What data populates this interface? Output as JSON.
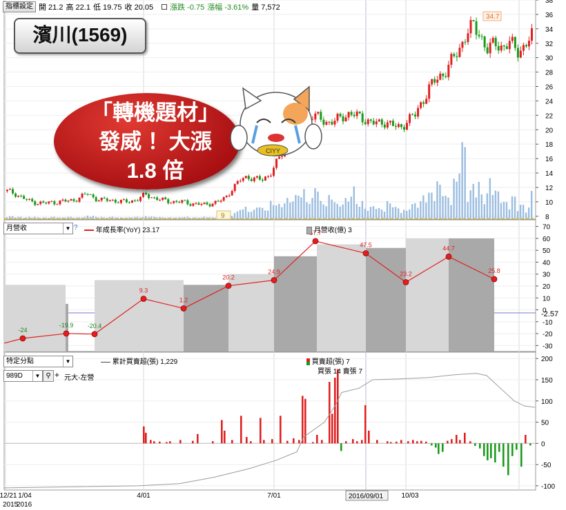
{
  "toolbar": {
    "button": "指標設定",
    "open": "開 21.2",
    "high": "高 22.1",
    "low": "低 19.75",
    "close": "收 20.05",
    "change": "漲跌 -0.75",
    "pct": "漲幅 -3.61%",
    "volume": "量 7,572"
  },
  "stock_title": "濱川(1569)",
  "callout": {
    "line1": "「轉機題材」",
    "line2": "發威 ！大漲",
    "line3": "1.8 倍"
  },
  "panel2": {
    "select": "月營收",
    "help": "?",
    "legend_line": "年成長率(YoY) 23.17",
    "legend_bar": "月營收(億) 3"
  },
  "panel3": {
    "select": "特定分點",
    "broker_code": "989D",
    "broker_name": "元大-左營",
    "legend_line": "累計買賣超(張) 1,229",
    "legend_bar": "買賣超(張) 7",
    "legend_sub": "買張 14 賣張 7"
  },
  "x_axis": {
    "labels": [
      "12/21",
      "1/04",
      "4/01",
      "7/01",
      "2016/09/01",
      "10/03"
    ],
    "year_labels": [
      "2015",
      "2016"
    ]
  },
  "colors": {
    "up": "#e02020",
    "down": "#1a9a1a",
    "volume": "#9bbde0",
    "revenue": "#a9a9a9",
    "yoy": "#e02020"
  },
  "chart_data": [
    {
      "type": "candlestick",
      "title": "濱川(1569)",
      "y_ticks": [
        8,
        10,
        12,
        14,
        16,
        18,
        20,
        22,
        24,
        26,
        28,
        30,
        32,
        34,
        36,
        38
      ],
      "ylim": [
        7.5,
        38
      ],
      "annotations": {
        "high": "34.7",
        "low": "9"
      },
      "price_path": [
        11.5,
        11.2,
        10.6,
        10.1,
        9.9,
        9.8,
        9.9,
        10.0,
        10.1,
        10.2,
        10.6,
        11.2,
        10.5,
        10.2,
        10.3,
        10.1,
        10.0,
        10.1,
        10.4,
        11.0,
        10.6,
        10.3,
        10.1,
        10.0,
        10.0,
        9.8,
        9.7,
        9.6,
        9.8,
        10.0,
        10.6,
        12.0,
        13.0,
        13.5,
        13.2,
        13.0,
        13.8,
        15.5,
        17.0,
        18.5,
        20.0,
        21.2,
        22.0,
        21.5,
        21.0,
        21.2,
        21.8,
        22.3,
        21.9,
        21.5,
        21.0,
        20.8,
        21.2,
        20.5,
        20.2,
        21.5,
        22.0,
        24.0,
        26.0,
        27.0,
        28.0,
        29.5,
        31.0,
        33.5,
        34.3,
        33.0,
        31.0,
        32.0,
        31.5,
        32.0,
        31.0,
        31.5,
        33.0
      ]
    },
    {
      "type": "bar",
      "name": "volume",
      "values": [
        0.4,
        0.3,
        0.2,
        0.3,
        0.2,
        0.2,
        0.3,
        0.2,
        0.3,
        0.2,
        0.3,
        0.5,
        0.3,
        0.2,
        0.3,
        0.2,
        0.2,
        0.3,
        0.3,
        0.4,
        0.3,
        0.2,
        0.2,
        0.2,
        0.3,
        0.2,
        0.2,
        0.3,
        0.2,
        0.3,
        0.6,
        1.2,
        2.0,
        1.5,
        2.5,
        1.8,
        3.0,
        2.5,
        3.5,
        4.0,
        5.0,
        3.5,
        6.5,
        3.0,
        4.0,
        2.5,
        3.5,
        5.5,
        3.0,
        2.0,
        2.5,
        1.8,
        3.0,
        2.0,
        1.5,
        2.5,
        3.0,
        4.5,
        5.0,
        6.5,
        4.0,
        7.0,
        13.5,
        5.0,
        6.5,
        4.5,
        7.5,
        5.0,
        3.0,
        4.0,
        2.5,
        2.0,
        5.0
      ]
    },
    {
      "type": "bar+line",
      "y_ticks": [
        -30,
        -20,
        -10,
        0,
        10,
        20,
        30,
        40,
        50,
        60,
        70
      ],
      "ylim": [
        -35,
        75
      ],
      "current_marker": "-2.57",
      "revenue_bars": [
        {
          "x0": 6,
          "x1": 95,
          "v": 21
        },
        {
          "x0": 95,
          "x1": 99,
          "v": 5
        },
        {
          "x0": 137,
          "x1": 266,
          "v": 25
        },
        {
          "x0": 266,
          "x1": 331,
          "v": 21
        },
        {
          "x0": 331,
          "x1": 397,
          "v": 30
        },
        {
          "x0": 397,
          "x1": 459,
          "v": 45
        },
        {
          "x0": 459,
          "x1": 530,
          "v": 55
        },
        {
          "x0": 530,
          "x1": 588,
          "v": 52
        },
        {
          "x0": 588,
          "x1": 650,
          "v": 60
        },
        {
          "x0": 650,
          "x1": 716,
          "v": 60
        }
      ],
      "yoy_points": [
        {
          "x": 33,
          "v": -24,
          "label": "-24"
        },
        {
          "x": 96,
          "v": -19.9,
          "label": "-19.9"
        },
        {
          "x": 137,
          "v": -20.4,
          "label": "-20.4"
        },
        {
          "x": 208,
          "v": 9.3,
          "label": "9.3"
        },
        {
          "x": 266,
          "v": 1.2,
          "label": "1.2"
        },
        {
          "x": 331,
          "v": 20.2,
          "label": "20.2"
        },
        {
          "x": 397,
          "v": 24.9,
          "label": "24.9"
        },
        {
          "x": 457,
          "v": 57.7,
          "label": "57.7"
        },
        {
          "x": 530,
          "v": 47.5,
          "label": "47.5"
        },
        {
          "x": 588,
          "v": 23.2,
          "label": "23.2"
        },
        {
          "x": 650,
          "v": 44.7,
          "label": "44.7"
        },
        {
          "x": 716,
          "v": 25.8,
          "label": "25.8"
        }
      ]
    },
    {
      "type": "bar+line",
      "y_ticks": [
        -100,
        -50,
        0,
        50,
        100,
        150,
        200
      ],
      "ylim": [
        -110,
        215
      ],
      "net_bars": [
        {
          "x": 207,
          "v": 40
        },
        {
          "x": 210,
          "v": 25
        },
        {
          "x": 217,
          "v": 8
        },
        {
          "x": 222,
          "v": 5
        },
        {
          "x": 230,
          "v": 4
        },
        {
          "x": 240,
          "v": 3
        },
        {
          "x": 245,
          "v": 5
        },
        {
          "x": 260,
          "v": 8
        },
        {
          "x": 278,
          "v": 6
        },
        {
          "x": 285,
          "v": 22
        },
        {
          "x": 307,
          "v": 5
        },
        {
          "x": 320,
          "v": 55
        },
        {
          "x": 324,
          "v": 30
        },
        {
          "x": 335,
          "v": 8
        },
        {
          "x": 348,
          "v": 65
        },
        {
          "x": 356,
          "v": 15
        },
        {
          "x": 362,
          "v": 5
        },
        {
          "x": 376,
          "v": 60
        },
        {
          "x": 381,
          "v": 8
        },
        {
          "x": 393,
          "v": 10
        },
        {
          "x": 405,
          "v": 65
        },
        {
          "x": 415,
          "v": 6
        },
        {
          "x": 424,
          "v": 12
        },
        {
          "x": 432,
          "v": 8
        },
        {
          "x": 437,
          "v": 112
        },
        {
          "x": 441,
          "v": 105
        },
        {
          "x": 452,
          "v": 3
        },
        {
          "x": 458,
          "v": 20
        },
        {
          "x": 465,
          "v": 8
        },
        {
          "x": 476,
          "v": 145
        },
        {
          "x": 480,
          "v": 70
        },
        {
          "x": 484,
          "v": 155
        },
        {
          "x": 488,
          "v": 175
        },
        {
          "x": 493,
          "v": -18
        },
        {
          "x": 500,
          "v": 5
        },
        {
          "x": 510,
          "v": 10
        },
        {
          "x": 516,
          "v": 5
        },
        {
          "x": 523,
          "v": 8
        },
        {
          "x": 528,
          "v": 90
        },
        {
          "x": 533,
          "v": 30
        },
        {
          "x": 545,
          "v": 8
        },
        {
          "x": 560,
          "v": 5
        },
        {
          "x": 565,
          "v": 3
        },
        {
          "x": 573,
          "v": 4
        },
        {
          "x": 580,
          "v": 8
        },
        {
          "x": 590,
          "v": 5
        },
        {
          "x": 597,
          "v": 8
        },
        {
          "x": 603,
          "v": 5
        },
        {
          "x": 609,
          "v": 6
        },
        {
          "x": 616,
          "v": 4
        },
        {
          "x": 624,
          "v": -5
        },
        {
          "x": 630,
          "v": -10
        },
        {
          "x": 634,
          "v": -25
        },
        {
          "x": 640,
          "v": -20
        },
        {
          "x": 647,
          "v": 6
        },
        {
          "x": 653,
          "v": 10
        },
        {
          "x": 660,
          "v": 20
        },
        {
          "x": 665,
          "v": 8
        },
        {
          "x": 672,
          "v": 25
        },
        {
          "x": 680,
          "v": 5
        },
        {
          "x": 687,
          "v": -6
        },
        {
          "x": 694,
          "v": -12
        },
        {
          "x": 700,
          "v": -30
        },
        {
          "x": 705,
          "v": -40
        },
        {
          "x": 710,
          "v": -35
        },
        {
          "x": 716,
          "v": -45
        },
        {
          "x": 722,
          "v": -20
        },
        {
          "x": 728,
          "v": -55
        },
        {
          "x": 735,
          "v": -75
        },
        {
          "x": 741,
          "v": -30
        },
        {
          "x": 747,
          "v": -15
        },
        {
          "x": 754,
          "v": -55
        },
        {
          "x": 760,
          "v": 20
        },
        {
          "x": 767,
          "v": -5
        }
      ],
      "cumulative": [
        [
          6,
          -105
        ],
        [
          200,
          -100
        ],
        [
          260,
          -95
        ],
        [
          310,
          -80
        ],
        [
          360,
          -60
        ],
        [
          400,
          -40
        ],
        [
          430,
          -20
        ],
        [
          440,
          15
        ],
        [
          470,
          50
        ],
        [
          486,
          90
        ],
        [
          495,
          120
        ],
        [
          520,
          130
        ],
        [
          540,
          150
        ],
        [
          580,
          152
        ],
        [
          620,
          155
        ],
        [
          660,
          162
        ],
        [
          690,
          165
        ],
        [
          705,
          160
        ],
        [
          725,
          130
        ],
        [
          745,
          100
        ],
        [
          760,
          88
        ],
        [
          775,
          85
        ]
      ]
    }
  ]
}
